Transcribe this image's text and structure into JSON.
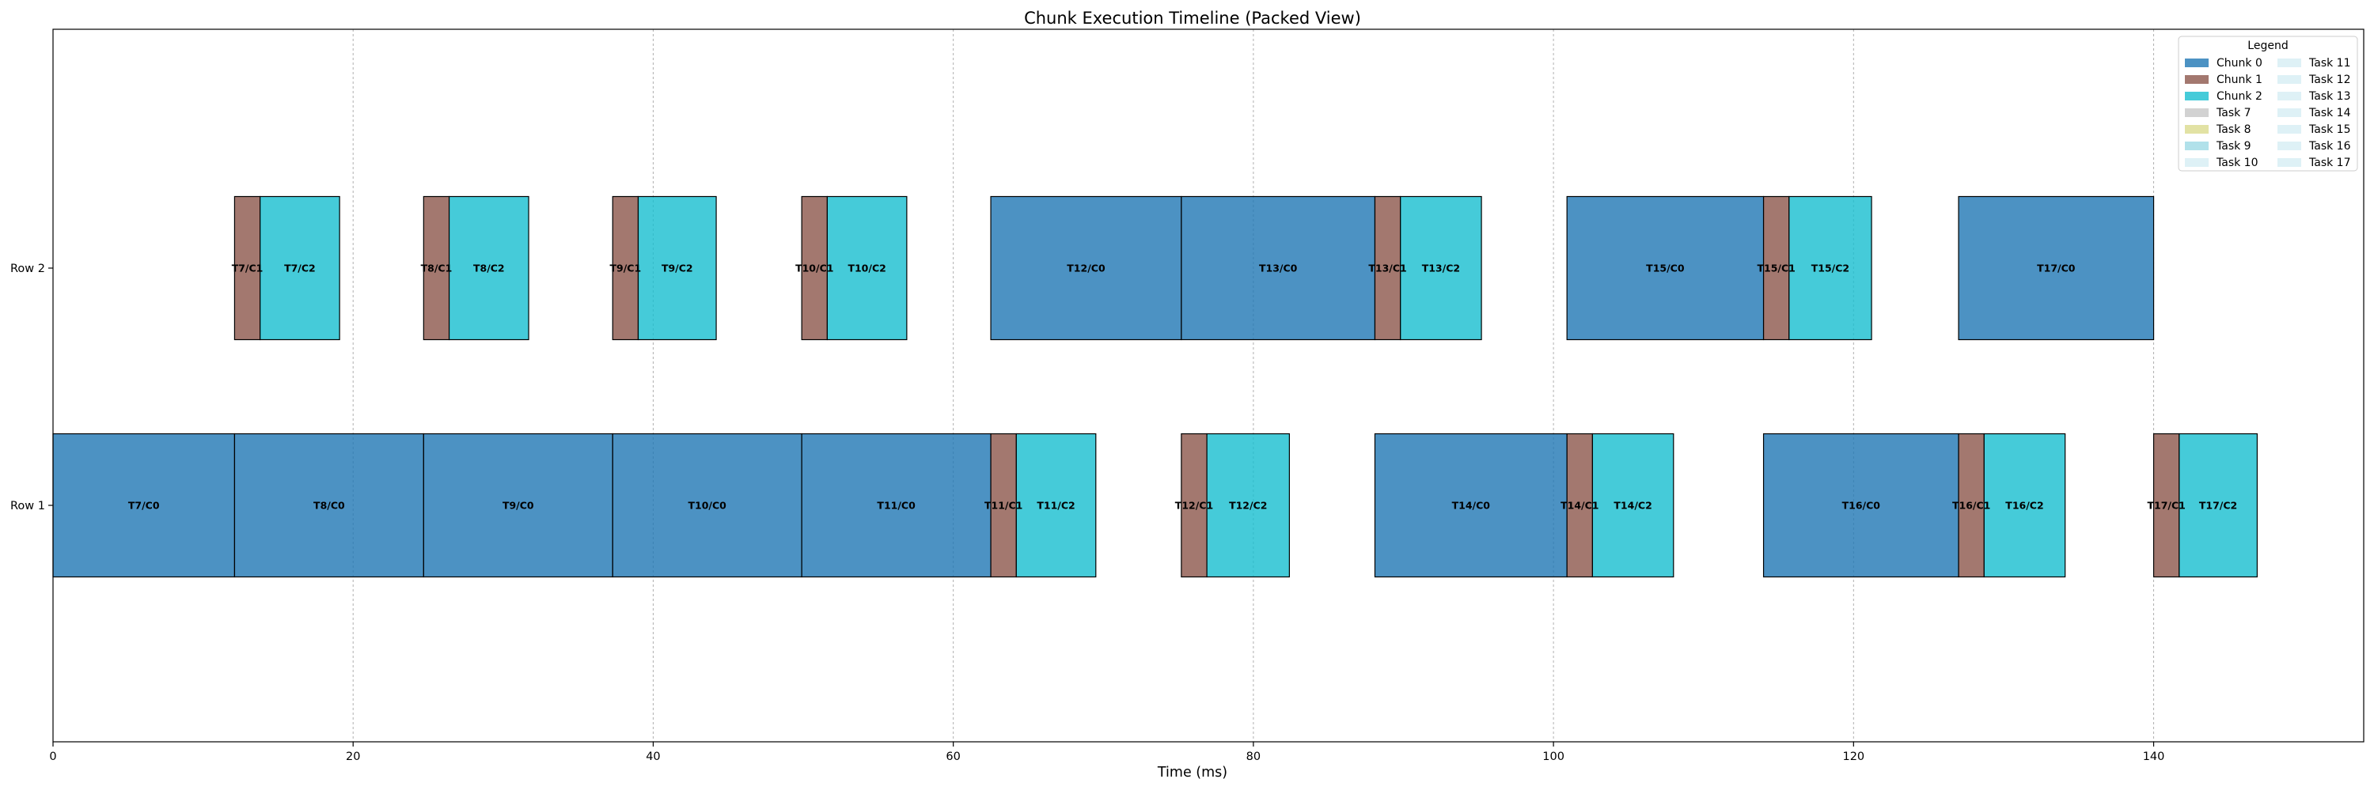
{
  "chart_data": {
    "type": "gantt",
    "title": "Chunk Execution Timeline (Packed View)",
    "xlabel": "Time (ms)",
    "ylabel": "",
    "xlim": [
      0,
      154
    ],
    "xticks": [
      0,
      20,
      40,
      60,
      80,
      100,
      120,
      140
    ],
    "grid": "x-dashed",
    "rows": [
      "Row 1",
      "Row 2"
    ],
    "colors": {
      "Chunk 0": "#1f77b4",
      "Chunk 1": "#8c564b",
      "Chunk 2": "#17becf",
      "Task 7": "#c7c7c7",
      "Task 8": "#dbdb8d",
      "Task 9": "#9edae5",
      "Task 10": "#d6eef4"
    },
    "legend": {
      "title": "Legend",
      "position": "top-right",
      "entries": [
        {
          "label": "Chunk 0",
          "color": "#1f77b4"
        },
        {
          "label": "Chunk 1",
          "color": "#8c564b"
        },
        {
          "label": "Chunk 2",
          "color": "#17becf"
        },
        {
          "label": "Task 7",
          "color": "#c7c7c7"
        },
        {
          "label": "Task 8",
          "color": "#dbdb8d"
        },
        {
          "label": "Task 9",
          "color": "#9edae5"
        },
        {
          "label": "Task 10",
          "color": "#d6eef4"
        },
        {
          "label": "Task 11",
          "color": "#d6eef4"
        },
        {
          "label": "Task 12",
          "color": "#d6eef4"
        },
        {
          "label": "Task 13",
          "color": "#d6eef4"
        },
        {
          "label": "Task 14",
          "color": "#d6eef4"
        },
        {
          "label": "Task 15",
          "color": "#d6eef4"
        },
        {
          "label": "Task 16",
          "color": "#d6eef4"
        },
        {
          "label": "Task 17",
          "color": "#d6eef4"
        }
      ]
    },
    "segments": [
      {
        "label": "T7/C0",
        "row": "Row 1",
        "chunk": 0,
        "start": 0,
        "end": 12.1
      },
      {
        "label": "T8/C0",
        "row": "Row 1",
        "chunk": 0,
        "start": 12.1,
        "end": 24.7
      },
      {
        "label": "T9/C0",
        "row": "Row 1",
        "chunk": 0,
        "start": 24.7,
        "end": 37.3
      },
      {
        "label": "T10/C0",
        "row": "Row 1",
        "chunk": 0,
        "start": 37.3,
        "end": 49.9
      },
      {
        "label": "T11/C0",
        "row": "Row 1",
        "chunk": 0,
        "start": 49.9,
        "end": 62.5
      },
      {
        "label": "T11/C1",
        "row": "Row 1",
        "chunk": 1,
        "start": 62.5,
        "end": 64.2
      },
      {
        "label": "T11/C2",
        "row": "Row 1",
        "chunk": 2,
        "start": 64.2,
        "end": 69.5
      },
      {
        "label": "T12/C1",
        "row": "Row 1",
        "chunk": 1,
        "start": 75.2,
        "end": 76.9
      },
      {
        "label": "T12/C2",
        "row": "Row 1",
        "chunk": 2,
        "start": 76.9,
        "end": 82.4
      },
      {
        "label": "T14/C0",
        "row": "Row 1",
        "chunk": 0,
        "start": 88.1,
        "end": 100.9
      },
      {
        "label": "T14/C1",
        "row": "Row 1",
        "chunk": 1,
        "start": 100.9,
        "end": 102.6
      },
      {
        "label": "T14/C2",
        "row": "Row 1",
        "chunk": 2,
        "start": 102.6,
        "end": 108.0
      },
      {
        "label": "T16/C0",
        "row": "Row 1",
        "chunk": 0,
        "start": 114.0,
        "end": 127.0
      },
      {
        "label": "T16/C1",
        "row": "Row 1",
        "chunk": 1,
        "start": 127.0,
        "end": 128.7
      },
      {
        "label": "T16/C2",
        "row": "Row 1",
        "chunk": 2,
        "start": 128.7,
        "end": 134.1
      },
      {
        "label": "T17/C1",
        "row": "Row 1",
        "chunk": 1,
        "start": 140.0,
        "end": 141.7
      },
      {
        "label": "T17/C2",
        "row": "Row 1",
        "chunk": 2,
        "start": 141.7,
        "end": 146.9
      },
      {
        "label": "T7/C1",
        "row": "Row 2",
        "chunk": 1,
        "start": 12.1,
        "end": 13.8
      },
      {
        "label": "T7/C2",
        "row": "Row 2",
        "chunk": 2,
        "start": 13.8,
        "end": 19.1
      },
      {
        "label": "T8/C1",
        "row": "Row 2",
        "chunk": 1,
        "start": 24.7,
        "end": 26.4
      },
      {
        "label": "T8/C2",
        "row": "Row 2",
        "chunk": 2,
        "start": 26.4,
        "end": 31.7
      },
      {
        "label": "T9/C1",
        "row": "Row 2",
        "chunk": 1,
        "start": 37.3,
        "end": 39.0
      },
      {
        "label": "T9/C2",
        "row": "Row 2",
        "chunk": 2,
        "start": 39.0,
        "end": 44.2
      },
      {
        "label": "T10/C1",
        "row": "Row 2",
        "chunk": 1,
        "start": 49.9,
        "end": 51.6
      },
      {
        "label": "T10/C2",
        "row": "Row 2",
        "chunk": 2,
        "start": 51.6,
        "end": 56.9
      },
      {
        "label": "T12/C0",
        "row": "Row 2",
        "chunk": 0,
        "start": 62.5,
        "end": 75.2
      },
      {
        "label": "T13/C0",
        "row": "Row 2",
        "chunk": 0,
        "start": 75.2,
        "end": 88.1
      },
      {
        "label": "T13/C1",
        "row": "Row 2",
        "chunk": 1,
        "start": 88.1,
        "end": 89.8
      },
      {
        "label": "T13/C2",
        "row": "Row 2",
        "chunk": 2,
        "start": 89.8,
        "end": 95.2
      },
      {
        "label": "T15/C0",
        "row": "Row 2",
        "chunk": 0,
        "start": 100.9,
        "end": 114.0
      },
      {
        "label": "T15/C1",
        "row": "Row 2",
        "chunk": 1,
        "start": 114.0,
        "end": 115.7
      },
      {
        "label": "T15/C2",
        "row": "Row 2",
        "chunk": 2,
        "start": 115.7,
        "end": 121.2
      },
      {
        "label": "T17/C0",
        "row": "Row 2",
        "chunk": 0,
        "start": 127.0,
        "end": 140.0
      }
    ]
  }
}
